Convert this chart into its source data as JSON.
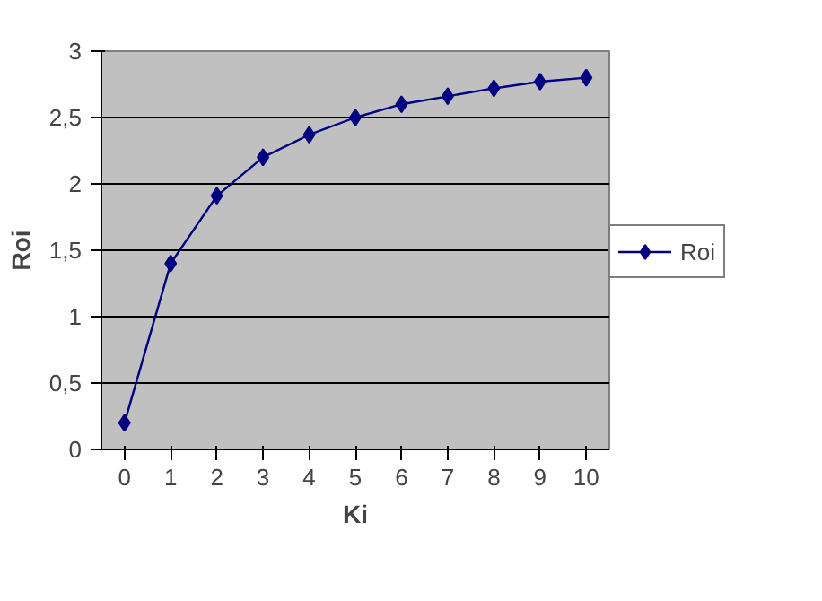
{
  "chart_data": {
    "type": "line",
    "categories": [
      "0",
      "1",
      "2",
      "3",
      "4",
      "5",
      "6",
      "7",
      "8",
      "9",
      "10"
    ],
    "series": [
      {
        "name": "Roi",
        "color": "#000080",
        "values": [
          0.2,
          1.4,
          1.91,
          2.2,
          2.37,
          2.5,
          2.6,
          2.66,
          2.72,
          2.77,
          2.8
        ]
      }
    ],
    "xlabel": "Ki",
    "ylabel": "Roi",
    "ylim": [
      0,
      3
    ],
    "yticks": [
      0,
      {
        "value": 0.5,
        "label": "0,5"
      },
      1,
      {
        "value": 1.5,
        "label": "1,5"
      },
      2,
      {
        "value": 2.5,
        "label": "2,5"
      },
      3
    ],
    "grid": "y",
    "legend": "right",
    "marker": "diamond",
    "line_style": "solid"
  }
}
